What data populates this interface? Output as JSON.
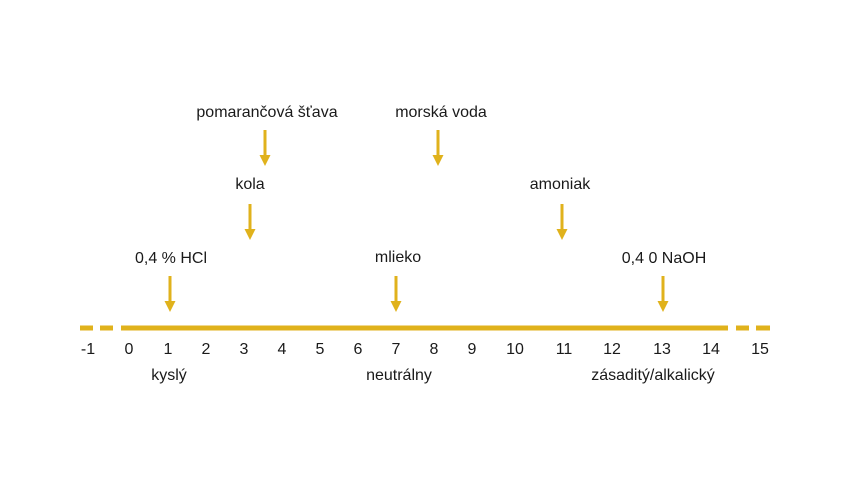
{
  "colors": {
    "accent": "#e0b21c",
    "text": "#1a1a1a",
    "background": "#ffffff"
  },
  "scale": {
    "ticks": [
      "-1",
      "0",
      "1",
      "2",
      "3",
      "4",
      "5",
      "6",
      "7",
      "8",
      "9",
      "10",
      "11",
      "12",
      "13",
      "14",
      "15"
    ],
    "solid_range": [
      0,
      14
    ],
    "dashed_extensions": [
      "-1",
      "15"
    ]
  },
  "regions": {
    "acidic": "kyslý",
    "neutral": "neutrálny",
    "basic": "zásaditý/alkalický"
  },
  "substances": [
    {
      "label": "pomarančová šťava",
      "ph": 3.5
    },
    {
      "label": "kola",
      "ph": 3
    },
    {
      "label": "0,4 % HCl",
      "ph": 1
    },
    {
      "label": "morská voda",
      "ph": 8
    },
    {
      "label": "mlieko",
      "ph": 7
    },
    {
      "label": "amoniak",
      "ph": 11
    },
    {
      "label": "0,4 0 NaOH",
      "ph": 13
    }
  ]
}
